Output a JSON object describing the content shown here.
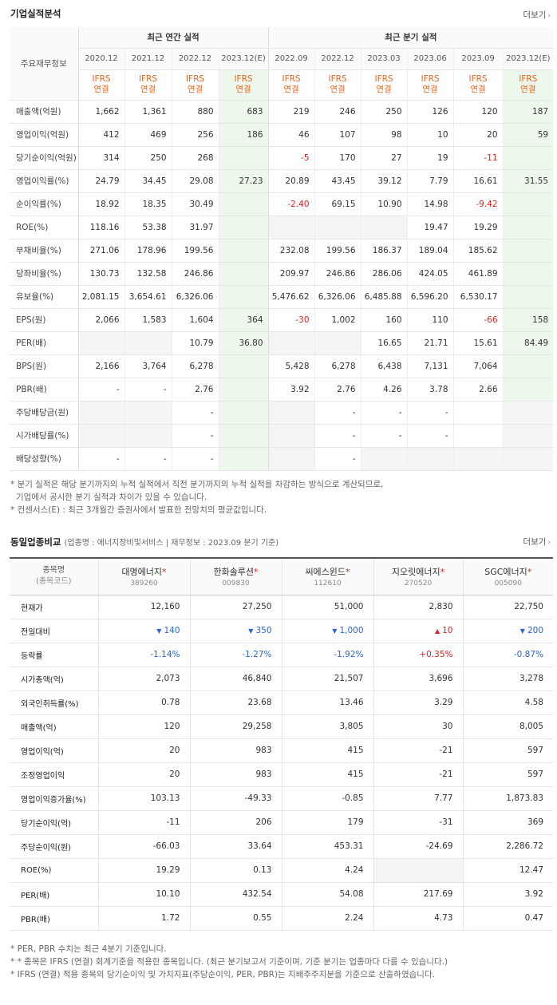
{
  "fin": {
    "title": "기업실적분석",
    "more": "더보기",
    "corner_label": "주요재무정보",
    "annual_group": "최근 연간 실적",
    "quarter_group": "최근 분기 실적",
    "periods": [
      "2020.12",
      "2021.12",
      "2022.12",
      "2023.12(E)",
      "2022.09",
      "2022.12",
      "2023.03",
      "2023.06",
      "2023.09",
      "2023.12(E)"
    ],
    "ifrs_line1": "IFRS",
    "ifrs_line2": "연결",
    "rows": [
      {
        "label": "매출액(억원)",
        "values": [
          "1,662",
          "1,361",
          "880",
          "683",
          "219",
          "246",
          "250",
          "126",
          "120",
          "187"
        ]
      },
      {
        "label": "영업이익(억원)",
        "values": [
          "412",
          "469",
          "256",
          "186",
          "46",
          "107",
          "98",
          "10",
          "20",
          "59"
        ]
      },
      {
        "label": "당기순이익(억원)",
        "values": [
          "314",
          "250",
          "268",
          "",
          "-5",
          "170",
          "27",
          "19",
          "-11",
          ""
        ]
      },
      {
        "label": "영업이익률(%)",
        "values": [
          "24.79",
          "34.45",
          "29.08",
          "27.23",
          "20.89",
          "43.45",
          "39.12",
          "7.79",
          "16.61",
          "31.55"
        ]
      },
      {
        "label": "순이익률(%)",
        "values": [
          "18.92",
          "18.35",
          "30.49",
          "",
          "-2.40",
          "69.15",
          "10.90",
          "14.98",
          "-9.42",
          ""
        ]
      },
      {
        "label": "ROE(%)",
        "values": [
          "118.16",
          "53.38",
          "31.97",
          "",
          "",
          "",
          "",
          "19.47",
          "19.29",
          ""
        ]
      },
      {
        "label": "부채비율(%)",
        "values": [
          "271.06",
          "178.96",
          "199.56",
          "",
          "232.08",
          "199.56",
          "186.37",
          "189.04",
          "185.62",
          ""
        ]
      },
      {
        "label": "당좌비율(%)",
        "values": [
          "130.73",
          "132.58",
          "246.86",
          "",
          "209.97",
          "246.86",
          "286.06",
          "424.05",
          "461.89",
          ""
        ]
      },
      {
        "label": "유보율(%)",
        "values": [
          "2,081.15",
          "3,654.61",
          "6,326.06",
          "",
          "5,476.62",
          "6,326.06",
          "6,485.88",
          "6,596.20",
          "6,530.17",
          ""
        ]
      },
      {
        "label": "EPS(원)",
        "values": [
          "2,066",
          "1,583",
          "1,604",
          "364",
          "-30",
          "1,002",
          "160",
          "110",
          "-66",
          "158"
        ]
      },
      {
        "label": "PER(배)",
        "values": [
          "",
          "",
          "10.79",
          "36.80",
          "",
          "",
          "16.65",
          "21.71",
          "15.61",
          "84.49"
        ]
      },
      {
        "label": "BPS(원)",
        "values": [
          "2,166",
          "3,764",
          "6,278",
          "",
          "5,428",
          "6,278",
          "6,438",
          "7,131",
          "7,064",
          ""
        ]
      },
      {
        "label": "PBR(배)",
        "values": [
          "-",
          "-",
          "2.76",
          "",
          "3.92",
          "2.76",
          "4.26",
          "3.78",
          "2.66",
          ""
        ]
      },
      {
        "label": "주당배당금(원)",
        "values": [
          "",
          "",
          "-",
          "",
          "",
          "-",
          "-",
          "-",
          "",
          ""
        ]
      },
      {
        "label": "시가배당률(%)",
        "values": [
          "",
          "",
          "-",
          "",
          "",
          "-",
          "-",
          "-",
          "",
          ""
        ]
      },
      {
        "label": "배당성향(%)",
        "values": [
          "-",
          "-",
          "-",
          "",
          "",
          "-",
          "",
          "",
          "",
          ""
        ]
      }
    ],
    "notes": [
      "* 분기 실적은 해당 분기까지의 누적 실적에서 직전 분기까지의 누적 실적을 차감하는 방식으로 계산되므로,",
      "  기업에서 공시한 분기 실적과 차이가 있을 수 있습니다.",
      "* 컨센서스(E) : 최근 3개월간 증권사에서 발표한 전망치의 평균값입니다."
    ]
  },
  "cmp": {
    "title": "동일업종비교",
    "subtitle": "(업종명 : 에너지장비및서비스 | 재무정보 : 2023.09 분기 기준)",
    "more": "더보기",
    "corner_line1": "종목명",
    "corner_line2": "(종목코드)",
    "companies": [
      {
        "name": "대명에너지",
        "code": "389260"
      },
      {
        "name": "한화솔루션",
        "code": "009830"
      },
      {
        "name": "씨에스윈드",
        "code": "112610"
      },
      {
        "name": "지오릿에너지",
        "code": "270520"
      },
      {
        "name": "SGC에너지",
        "code": "005090"
      }
    ],
    "rows": [
      {
        "label": "현재가",
        "values": [
          "12,160",
          "27,250",
          "51,000",
          "2,830",
          "22,750"
        ]
      },
      {
        "label": "전일대비",
        "values": [
          "140",
          "350",
          "1,000",
          "10",
          "200"
        ],
        "dirs": [
          "down",
          "down",
          "down",
          "up",
          "down"
        ]
      },
      {
        "label": "등락률",
        "values": [
          "-1.14%",
          "-1.27%",
          "-1.92%",
          "+0.35%",
          "-0.87%"
        ]
      },
      {
        "label": "시가총액(억)",
        "values": [
          "2,073",
          "46,840",
          "21,507",
          "3,696",
          "3,278"
        ]
      },
      {
        "label": "외국인취득률(%)",
        "values": [
          "0.78",
          "23.68",
          "13.46",
          "3.29",
          "4.58"
        ]
      },
      {
        "label": "매출액(억)",
        "values": [
          "120",
          "29,258",
          "3,805",
          "30",
          "8,005"
        ]
      },
      {
        "label": "영업이익(억)",
        "values": [
          "20",
          "983",
          "415",
          "-21",
          "597"
        ]
      },
      {
        "label": "조정영업이익",
        "values": [
          "20",
          "983",
          "415",
          "-21",
          "597"
        ]
      },
      {
        "label": "영업이익증가율(%)",
        "values": [
          "103.13",
          "-49.33",
          "-0.85",
          "7.77",
          "1,873.83"
        ]
      },
      {
        "label": "당기순이익(억)",
        "values": [
          "-11",
          "206",
          "179",
          "-31",
          "369"
        ]
      },
      {
        "label": "주당순이익(원)",
        "values": [
          "-66.03",
          "33.64",
          "453.31",
          "-24.69",
          "2,286.72"
        ]
      },
      {
        "label": "ROE(%)",
        "values": [
          "19.29",
          "0.13",
          "4.24",
          "",
          "12.47"
        ]
      },
      {
        "label": "PER(배)",
        "values": [
          "10.10",
          "432.54",
          "54.08",
          "217.69",
          "3.92"
        ]
      },
      {
        "label": "PBR(배)",
        "values": [
          "1.72",
          "0.55",
          "2.24",
          "4.73",
          "0.47"
        ]
      }
    ],
    "notes": [
      "* PER, PBR 수치는 최근 4분기 기준입니다.",
      "* * 종목은 IFRS (연결) 회계기준을 적용한 종목입니다. (최근 분기보고서 기준이며, 기준 분기는 업종마다 다를 수 있습니다.)",
      "* IFRS (연결) 적용 종목의 당기순이익 및 가치지표(주당순이익, PER, PBR)는 지배주주지분을 기준으로 산출하였습니다."
    ]
  }
}
